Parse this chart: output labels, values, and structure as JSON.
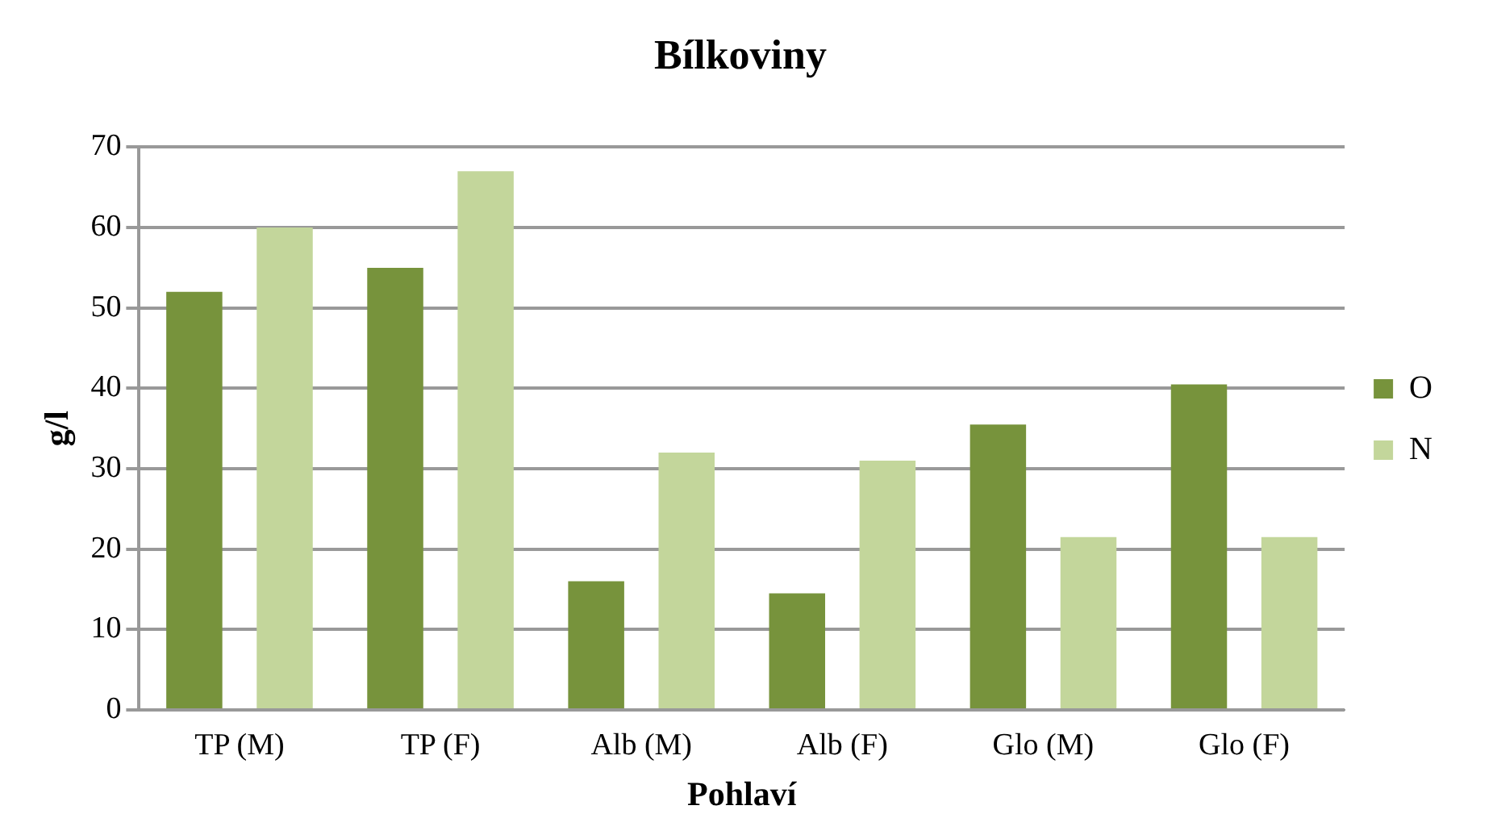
{
  "chart_data": {
    "type": "bar",
    "title": "Bílkoviny",
    "xlabel": "Pohlaví",
    "ylabel": "g/l",
    "categories": [
      "TP (M)",
      "TP (F)",
      "Alb (M)",
      "Alb (F)",
      "Glo (M)",
      "Glo (F)"
    ],
    "series": [
      {
        "name": "O",
        "color": "#77933c",
        "values": [
          52,
          55,
          16,
          14.5,
          35.5,
          40.5
        ]
      },
      {
        "name": "N",
        "color": "#c3d69b",
        "values": [
          60,
          67,
          32,
          31,
          21.5,
          21.5
        ]
      }
    ],
    "ylim": [
      0,
      70
    ],
    "yticks": [
      0,
      10,
      20,
      30,
      40,
      50,
      60,
      70
    ],
    "grid": "y",
    "legend": "right"
  }
}
